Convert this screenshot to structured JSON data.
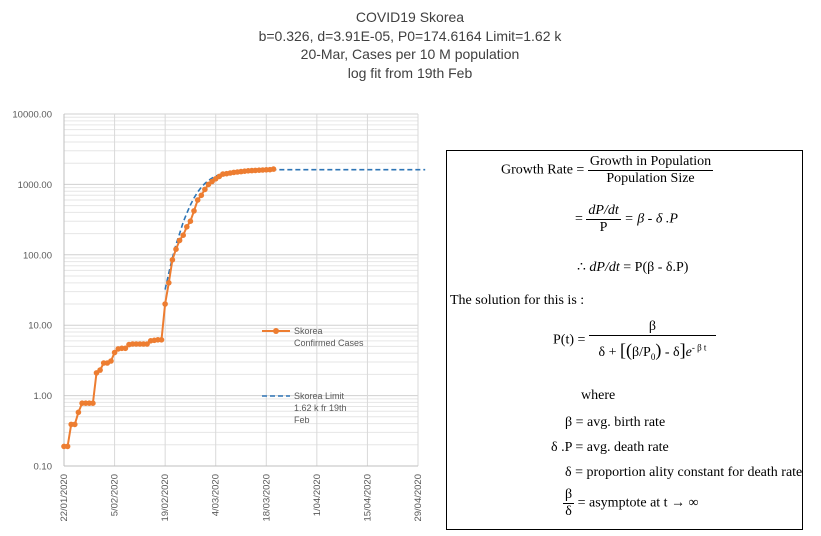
{
  "chart_data": {
    "type": "line",
    "title": "COVID19 Skorea",
    "subtitle_lines": [
      "b=0.326, d=3.91E-05, P0=174.6164 Limit=1.62 k",
      "20-Mar, Cases per 10 M population",
      "log fit from  19th Feb"
    ],
    "y_scale": "log",
    "ylim": [
      0.1,
      10000
    ],
    "y_tick_labels": [
      "10000.00",
      "1000.00",
      "100.00",
      "10.00",
      "1.00",
      "0.10"
    ],
    "x_range_days": [
      "2020-01-22",
      "2020-04-29"
    ],
    "x_tick_labels": [
      "22/01/2020",
      "5/02/2020",
      "19/02/2020",
      "4/03/2020",
      "18/03/2020",
      "1/04/2020",
      "15/04/2020",
      "29/04/2020"
    ],
    "series": [
      {
        "name": "Skorea Confirmed Cases",
        "color": "#ED7D31",
        "style": "line-markers",
        "x_day": [
          0,
          1,
          2,
          3,
          4,
          5,
          6,
          7,
          8,
          9,
          10,
          11,
          12,
          13,
          14,
          15,
          16,
          17,
          18,
          19,
          20,
          21,
          22,
          23,
          24,
          25,
          26,
          27,
          28,
          29,
          30,
          31,
          32,
          33,
          34,
          35,
          36,
          37,
          38,
          39,
          40,
          41,
          42,
          43,
          44,
          45,
          46,
          47,
          48,
          49,
          50,
          51,
          52,
          53,
          54,
          55,
          56,
          57,
          58
        ],
        "values": [
          0.19,
          0.19,
          0.39,
          0.39,
          0.58,
          0.78,
          0.78,
          0.78,
          0.78,
          2.1,
          2.3,
          2.9,
          2.9,
          3.1,
          4.1,
          4.6,
          4.7,
          4.7,
          5.3,
          5.4,
          5.4,
          5.4,
          5.4,
          5.4,
          6.0,
          6.1,
          6.2,
          6.2,
          20,
          40,
          85,
          120,
          160,
          190,
          250,
          300,
          420,
          600,
          700,
          850,
          1000,
          1100,
          1200,
          1300,
          1400,
          1420,
          1450,
          1480,
          1500,
          1520,
          1540,
          1560,
          1570,
          1580,
          1590,
          1600,
          1610,
          1620,
          1650
        ]
      },
      {
        "name": "Skorea Limit 1.62 k fr 19th Feb",
        "color": "#2E75B6",
        "style": "dashed",
        "x_day": [
          28,
          29,
          30,
          31,
          32,
          33,
          34,
          35,
          36,
          37,
          38,
          39,
          40,
          41,
          42,
          43,
          44,
          46,
          48,
          50,
          52,
          55,
          60,
          70,
          80,
          90,
          100
        ],
        "values": [
          32,
          55,
          90,
          140,
          200,
          290,
          390,
          510,
          640,
          780,
          910,
          1030,
          1140,
          1230,
          1310,
          1370,
          1420,
          1490,
          1540,
          1570,
          1590,
          1605,
          1615,
          1619,
          1620,
          1620,
          1620
        ]
      }
    ],
    "legend": [
      {
        "label_lines": [
          "Skorea",
          "Confirmed Cases"
        ]
      },
      {
        "label_lines": [
          "Skorea Limit",
          "1.62 k fr 19th",
          "Feb"
        ]
      }
    ]
  },
  "formula_panel": {
    "growth_rate_label": "Growth Rate =",
    "growth_num": "Growth in Population",
    "growth_den": "Population Size",
    "eq_equals": "=",
    "dp": "dP",
    "dt": "dt",
    "p": "P",
    "beta_minus_delta": "= β - δ .P",
    "therefore": "∴",
    "dpdt_rhs": "= P(β - δ.P)",
    "solution_text": "The solution for this is :",
    "pt_label": "P(t) =",
    "beta": "β",
    "delta_plus": "δ +",
    "p0": "P",
    "p0_sub": "0",
    "minus_delta": "- δ",
    "exp": "e",
    "exp_power": "- β t",
    "where": "where",
    "def_beta": "β = avg. birth rate",
    "def_dp": "δ .P = avg. death rate",
    "def_delta": "δ = proportion ality constant  for death rate",
    "asym_num": "β",
    "asym_den": "δ",
    "asym_text": "= asymptote  at t  → ∞"
  }
}
